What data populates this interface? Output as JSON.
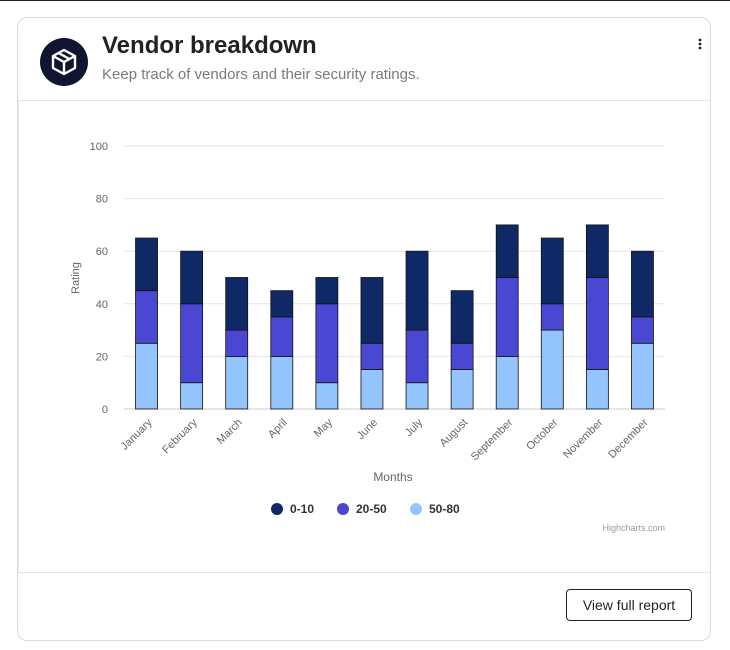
{
  "header": {
    "title": "Vendor breakdown",
    "subtitle": "Keep track of vendors and their security ratings.",
    "logo_icon": "cube-icon",
    "menu_icon": "vertical-ellipsis-icon"
  },
  "footer": {
    "button_label": "View full report"
  },
  "chart_data": {
    "type": "bar",
    "stacked": true,
    "categories": [
      "January",
      "February",
      "March",
      "April",
      "May",
      "June",
      "July",
      "August",
      "September",
      "October",
      "November",
      "December"
    ],
    "series": [
      {
        "name": "50-80",
        "color": "#93c4fb",
        "values": [
          25,
          10,
          20,
          20,
          10,
          15,
          10,
          15,
          20,
          30,
          15,
          25
        ]
      },
      {
        "name": "20-50",
        "color": "#4a48d3",
        "values": [
          20,
          30,
          10,
          15,
          30,
          10,
          20,
          10,
          30,
          10,
          35,
          10
        ]
      },
      {
        "name": "0-10",
        "color": "#0f2866",
        "values": [
          20,
          20,
          20,
          10,
          10,
          25,
          30,
          20,
          20,
          25,
          20,
          25
        ]
      }
    ],
    "legend_order": [
      "0-10",
      "20-50",
      "50-80"
    ],
    "xlabel": "Months",
    "ylabel": "Rating",
    "ylim": [
      0,
      100
    ],
    "yticks": [
      0,
      20,
      40,
      60,
      80,
      100
    ],
    "grid": true,
    "legend_position": "bottom-center",
    "credits": "Highcharts.com"
  }
}
